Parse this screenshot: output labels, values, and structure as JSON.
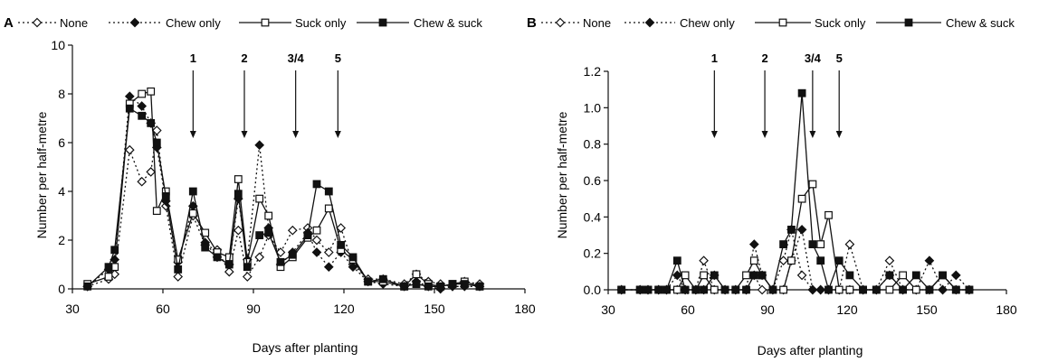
{
  "chart_data": [
    {
      "type": "line",
      "panel": "A",
      "xlabel": "Days after planting",
      "ylabel": "Number per half-metre",
      "xlim": [
        30,
        180
      ],
      "ylim": [
        0,
        10
      ],
      "xticks": [
        "30",
        "60",
        "90",
        "120",
        "150",
        "180"
      ],
      "yticks": [
        "0",
        "2",
        "4",
        "6",
        "8",
        "10"
      ],
      "arrows": [
        {
          "label": "1",
          "x": 70
        },
        {
          "label": "2",
          "x": 87
        },
        {
          "label": "3/4",
          "x": 104
        },
        {
          "label": "5",
          "x": 118
        }
      ],
      "series": [
        {
          "name": "None",
          "x": [
            35,
            42,
            44,
            49,
            53,
            56,
            58,
            61,
            65,
            70,
            74,
            78,
            82,
            85,
            88,
            92,
            95,
            99,
            103,
            108,
            111,
            115,
            119,
            123,
            128,
            133,
            140,
            144,
            148,
            152,
            156,
            160,
            165
          ],
          "y": [
            0.1,
            0.4,
            0.6,
            5.7,
            4.4,
            4.8,
            6.5,
            3.4,
            0.5,
            3.0,
            1.8,
            1.6,
            0.7,
            2.4,
            0.5,
            1.3,
            2.2,
            1.5,
            2.4,
            2.5,
            2.0,
            1.5,
            2.5,
            1.0,
            0.4,
            0.4,
            0.2,
            0.6,
            0.3,
            0.2,
            0.1,
            0.3,
            0.2
          ]
        },
        {
          "name": "Chew only",
          "x": [
            35,
            42,
            44,
            49,
            53,
            56,
            58,
            61,
            65,
            70,
            74,
            78,
            82,
            85,
            88,
            92,
            95,
            99,
            103,
            108,
            111,
            115,
            119,
            123,
            128,
            133,
            140,
            144,
            148,
            152,
            156,
            160,
            165
          ],
          "y": [
            0.1,
            0.8,
            1.2,
            7.9,
            7.5,
            6.8,
            5.8,
            3.6,
            1.1,
            3.4,
            1.9,
            1.3,
            1.0,
            3.7,
            1.2,
            5.9,
            2.5,
            1.0,
            1.5,
            2.3,
            1.5,
            0.9,
            1.5,
            0.9,
            0.3,
            0.2,
            0.1,
            0.3,
            0.1,
            0.0,
            0.1,
            0.1,
            0.1
          ]
        },
        {
          "name": "Suck only",
          "x": [
            35,
            42,
            44,
            49,
            53,
            56,
            58,
            61,
            65,
            70,
            74,
            78,
            82,
            85,
            88,
            92,
            95,
            99,
            103,
            108,
            111,
            115,
            119,
            123,
            128,
            133,
            140,
            144,
            148,
            152,
            156,
            160,
            165
          ],
          "y": [
            0.2,
            0.5,
            0.9,
            7.6,
            8.0,
            8.1,
            3.2,
            4.0,
            1.2,
            3.1,
            2.3,
            1.5,
            1.3,
            4.5,
            1.1,
            3.7,
            3.0,
            0.9,
            1.3,
            2.1,
            2.4,
            3.3,
            1.6,
            1.2,
            0.3,
            0.3,
            0.1,
            0.6,
            0.2,
            0.1,
            0.2,
            0.3,
            0.1
          ]
        },
        {
          "name": "Chew & suck",
          "x": [
            35,
            42,
            44,
            49,
            53,
            56,
            58,
            61,
            65,
            70,
            74,
            78,
            82,
            85,
            88,
            92,
            95,
            99,
            103,
            108,
            111,
            115,
            119,
            123,
            128,
            133,
            140,
            144,
            148,
            152,
            156,
            160,
            165
          ],
          "y": [
            0.1,
            0.9,
            1.6,
            7.4,
            7.1,
            6.8,
            6.0,
            3.8,
            0.8,
            4.0,
            1.7,
            1.3,
            1.0,
            3.9,
            0.9,
            2.2,
            2.3,
            1.1,
            1.4,
            2.2,
            4.3,
            4.0,
            1.8,
            1.3,
            0.3,
            0.4,
            0.1,
            0.2,
            0.1,
            0.1,
            0.2,
            0.2,
            0.1
          ]
        }
      ]
    },
    {
      "type": "line",
      "panel": "B",
      "xlabel": "Days after planting",
      "ylabel": "Number per half-metre",
      "xlim": [
        30,
        180
      ],
      "ylim": [
        0,
        1.2
      ],
      "xticks": [
        "30",
        "60",
        "90",
        "120",
        "150",
        "180"
      ],
      "yticks": [
        "0.0",
        "0.2",
        "0.4",
        "0.6",
        "0.8",
        "1.0",
        "1.2"
      ],
      "arrows": [
        {
          "label": "1",
          "x": 70
        },
        {
          "label": "2",
          "x": 89
        },
        {
          "label": "3/4",
          "x": 107
        },
        {
          "label": "5",
          "x": 117
        }
      ],
      "series": [
        {
          "name": "None",
          "x": [
            35,
            42,
            45,
            49,
            52,
            56,
            59,
            63,
            66,
            70,
            74,
            78,
            82,
            85,
            88,
            92,
            96,
            99,
            103,
            107,
            110,
            113,
            117,
            121,
            126,
            131,
            136,
            141,
            146,
            151,
            156,
            161,
            166
          ],
          "y": [
            0.0,
            0.0,
            0.0,
            0.0,
            0.0,
            0.0,
            0.0,
            0.0,
            0.16,
            0.0,
            0.0,
            0.0,
            0.0,
            0.08,
            0.0,
            0.0,
            0.16,
            0.33,
            0.08,
            0.0,
            0.0,
            0.0,
            0.0,
            0.25,
            0.0,
            0.0,
            0.16,
            0.0,
            0.0,
            0.0,
            0.0,
            0.0,
            0.0
          ]
        },
        {
          "name": "Chew only",
          "x": [
            35,
            42,
            45,
            49,
            52,
            56,
            59,
            63,
            66,
            70,
            74,
            78,
            82,
            85,
            88,
            92,
            96,
            99,
            103,
            107,
            110,
            113,
            117,
            121,
            126,
            131,
            136,
            141,
            146,
            151,
            156,
            161,
            166
          ],
          "y": [
            0.0,
            0.0,
            0.0,
            0.0,
            0.0,
            0.08,
            0.0,
            0.0,
            0.0,
            0.08,
            0.0,
            0.0,
            0.0,
            0.25,
            0.08,
            0.0,
            0.0,
            0.16,
            0.33,
            0.0,
            0.0,
            0.0,
            0.0,
            0.0,
            0.0,
            0.0,
            0.08,
            0.0,
            0.0,
            0.16,
            0.0,
            0.08,
            0.0
          ]
        },
        {
          "name": "Suck only",
          "x": [
            35,
            42,
            45,
            49,
            52,
            56,
            59,
            63,
            66,
            70,
            74,
            78,
            82,
            85,
            88,
            92,
            96,
            99,
            103,
            107,
            110,
            113,
            117,
            121,
            126,
            131,
            136,
            141,
            146,
            151,
            156,
            161,
            166
          ],
          "y": [
            0.0,
            0.0,
            0.0,
            0.0,
            0.0,
            0.0,
            0.08,
            0.0,
            0.08,
            0.0,
            0.0,
            0.0,
            0.08,
            0.16,
            0.08,
            0.0,
            0.0,
            0.16,
            0.5,
            0.58,
            0.25,
            0.41,
            0.0,
            0.0,
            0.0,
            0.0,
            0.0,
            0.08,
            0.0,
            0.0,
            0.08,
            0.0,
            0.0
          ]
        },
        {
          "name": "Chew & suck",
          "x": [
            35,
            42,
            45,
            49,
            52,
            56,
            59,
            63,
            66,
            70,
            74,
            78,
            82,
            85,
            88,
            92,
            96,
            99,
            103,
            107,
            110,
            113,
            117,
            121,
            126,
            131,
            136,
            141,
            146,
            151,
            156,
            161,
            166
          ],
          "y": [
            0.0,
            0.0,
            0.0,
            0.0,
            0.0,
            0.16,
            0.0,
            0.0,
            0.0,
            0.08,
            0.0,
            0.0,
            0.0,
            0.08,
            0.08,
            0.0,
            0.25,
            0.33,
            1.08,
            0.25,
            0.16,
            0.0,
            0.16,
            0.08,
            0.0,
            0.0,
            0.08,
            0.0,
            0.08,
            0.0,
            0.08,
            0.0,
            0.0
          ]
        }
      ]
    }
  ],
  "legend": {
    "marker_styles": [
      "open-diamond",
      "filled-diamond",
      "open-square",
      "filled-square"
    ],
    "line_styles": [
      "dotted",
      "dotted",
      "solid",
      "solid"
    ]
  }
}
